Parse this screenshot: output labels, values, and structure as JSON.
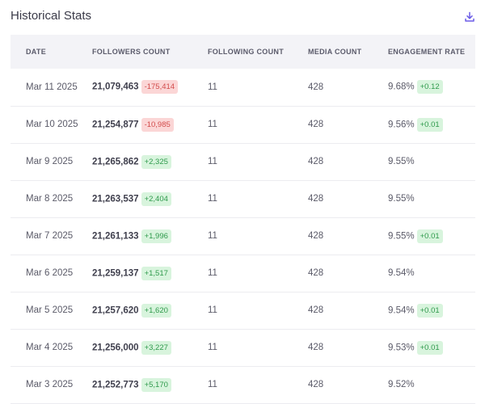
{
  "header": {
    "title": "Historical Stats",
    "download_icon": "download-icon"
  },
  "colors": {
    "accent": "#6b5ce7",
    "negative_bg": "#fbd6d6",
    "positive_bg": "#d8f4dd"
  },
  "table": {
    "columns": [
      "DATE",
      "FOLLOWERS COUNT",
      "FOLLOWING COUNT",
      "MEDIA COUNT",
      "ENGAGEMENT RATE"
    ],
    "rows": [
      {
        "date": "Mar 11 2025",
        "followers": "21,079,463",
        "followers_change": "-175,414",
        "followers_trend": "neg",
        "following": "11",
        "media": "428",
        "engagement": "9.68%",
        "engagement_change": "+0.12"
      },
      {
        "date": "Mar 10 2025",
        "followers": "21,254,877",
        "followers_change": "-10,985",
        "followers_trend": "neg",
        "following": "11",
        "media": "428",
        "engagement": "9.56%",
        "engagement_change": "+0.01"
      },
      {
        "date": "Mar 9 2025",
        "followers": "21,265,862",
        "followers_change": "+2,325",
        "followers_trend": "pos",
        "following": "11",
        "media": "428",
        "engagement": "9.55%",
        "engagement_change": ""
      },
      {
        "date": "Mar 8 2025",
        "followers": "21,263,537",
        "followers_change": "+2,404",
        "followers_trend": "pos",
        "following": "11",
        "media": "428",
        "engagement": "9.55%",
        "engagement_change": ""
      },
      {
        "date": "Mar 7 2025",
        "followers": "21,261,133",
        "followers_change": "+1,996",
        "followers_trend": "pos",
        "following": "11",
        "media": "428",
        "engagement": "9.55%",
        "engagement_change": "+0.01"
      },
      {
        "date": "Mar 6 2025",
        "followers": "21,259,137",
        "followers_change": "+1,517",
        "followers_trend": "pos",
        "following": "11",
        "media": "428",
        "engagement": "9.54%",
        "engagement_change": ""
      },
      {
        "date": "Mar 5 2025",
        "followers": "21,257,620",
        "followers_change": "+1,620",
        "followers_trend": "pos",
        "following": "11",
        "media": "428",
        "engagement": "9.54%",
        "engagement_change": "+0.01"
      },
      {
        "date": "Mar 4 2025",
        "followers": "21,256,000",
        "followers_change": "+3,227",
        "followers_trend": "pos",
        "following": "11",
        "media": "428",
        "engagement": "9.53%",
        "engagement_change": "+0.01"
      },
      {
        "date": "Mar 3 2025",
        "followers": "21,252,773",
        "followers_change": "+5,170",
        "followers_trend": "pos",
        "following": "11",
        "media": "428",
        "engagement": "9.52%",
        "engagement_change": ""
      }
    ]
  }
}
